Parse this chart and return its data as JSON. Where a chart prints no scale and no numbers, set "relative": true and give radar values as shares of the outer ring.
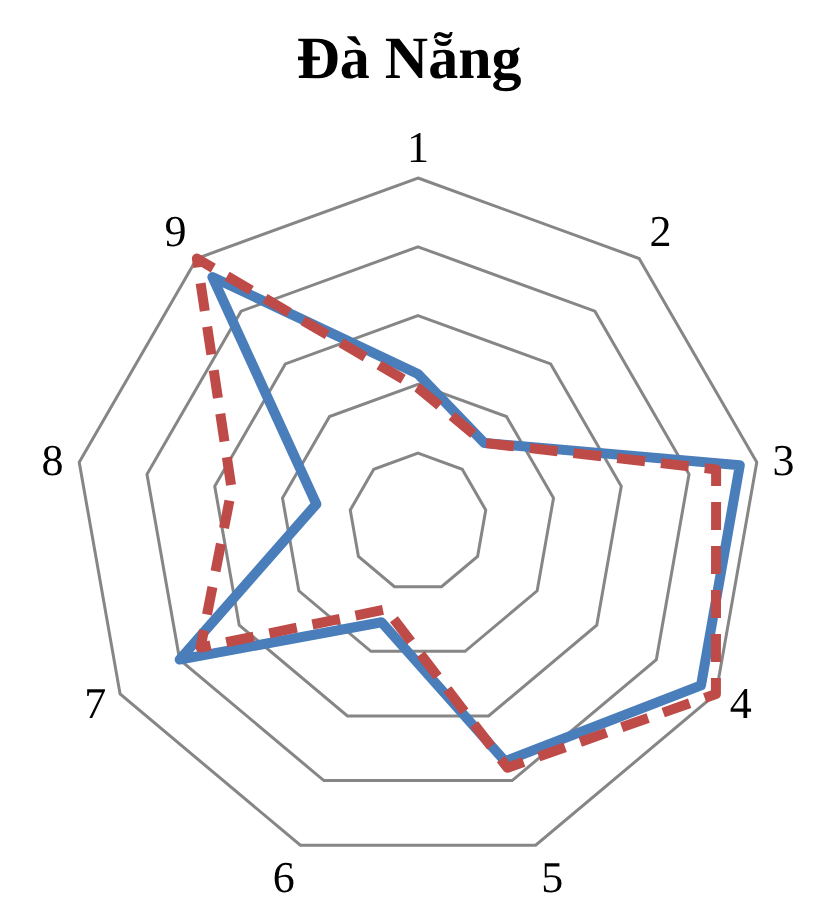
{
  "chart_data": {
    "type": "radar",
    "title": "Đà Nẵng",
    "relative": true,
    "grid": true,
    "legend": false,
    "marker": "none",
    "categories": [
      "1",
      "2",
      "3",
      "4",
      "5",
      "6",
      "7",
      "8",
      "9"
    ],
    "series": [
      {
        "color": "#4a7ebb",
        "line_style": "solid",
        "values": [
          0.43,
          0.3,
          0.95,
          0.95,
          0.74,
          0.31,
          0.8,
          0.3,
          0.93
        ]
      },
      {
        "color": "#be4b48",
        "line_style": "dashed",
        "values": [
          0.39,
          0.3,
          0.88,
          1.0,
          0.76,
          0.27,
          0.73,
          0.55,
          1.0
        ]
      }
    ]
  }
}
